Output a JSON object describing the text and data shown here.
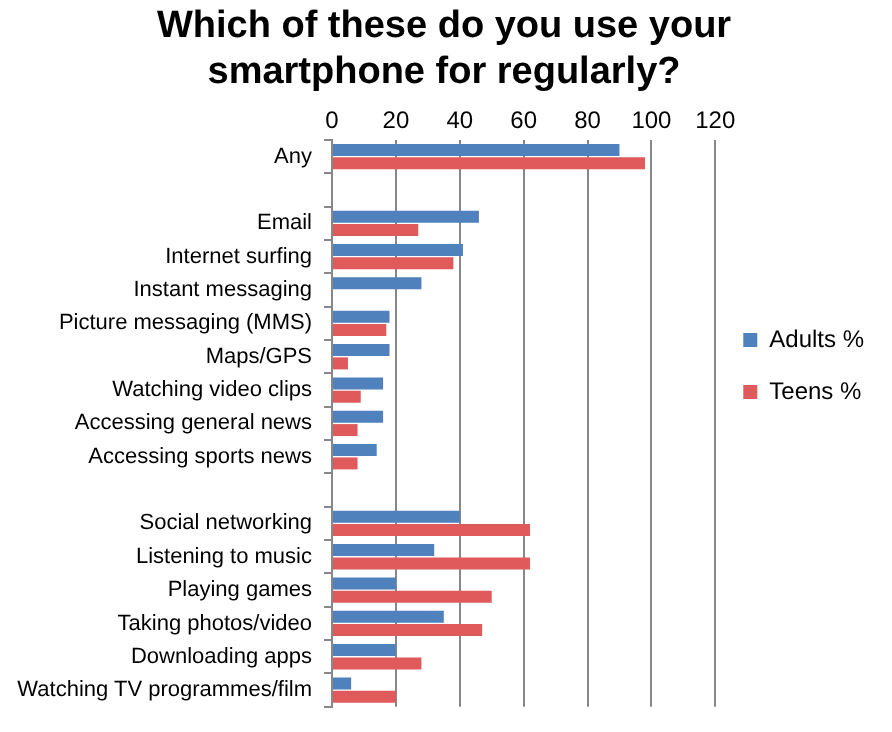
{
  "chart_data": {
    "type": "bar",
    "orientation": "horizontal",
    "title": "Which of these do you use your smartphone for regularly?",
    "categories": [
      "Any",
      null,
      "Email",
      "Internet surfing",
      "Instant messaging",
      "Picture messaging (MMS)",
      "Maps/GPS",
      "Watching video clips",
      "Accessing general news",
      "Accessing sports news",
      null,
      "Social networking",
      "Listening to music",
      "Playing games",
      "Taking photos/video",
      "Downloading apps",
      "Watching TV programmes/film"
    ],
    "series": [
      {
        "name": "Adults %",
        "color": "#4f81bd",
        "values": [
          90,
          null,
          46,
          41,
          28,
          18,
          18,
          16,
          16,
          14,
          null,
          40,
          32,
          20,
          35,
          20,
          6
        ]
      },
      {
        "name": "Teens %",
        "color": "#e05a5c",
        "values": [
          98,
          null,
          27,
          38,
          null,
          17,
          5,
          9,
          8,
          8,
          null,
          62,
          62,
          50,
          47,
          28,
          20
        ]
      }
    ],
    "xlim": [
      0,
      120
    ],
    "xticks": [
      0,
      20,
      40,
      60,
      80,
      100,
      120
    ],
    "grid": "x",
    "legend": "right"
  }
}
